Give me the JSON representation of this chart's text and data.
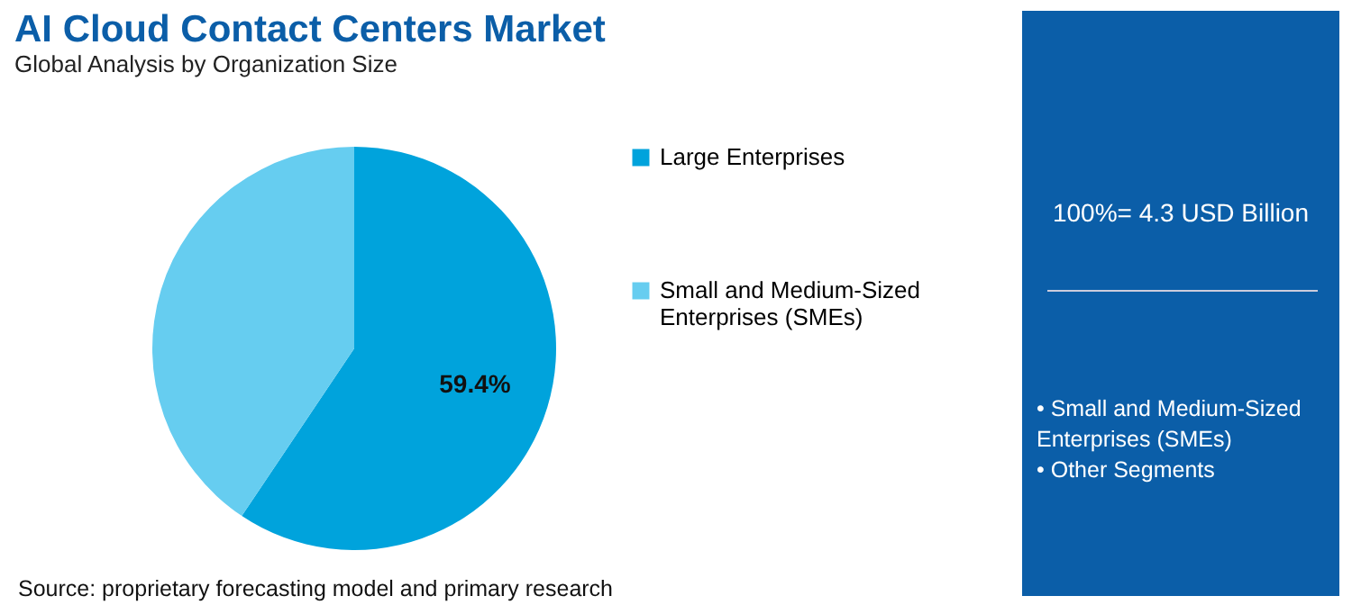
{
  "chart_data": {
    "type": "pie",
    "title": "AI Cloud Contact Centers Market",
    "subtitle": "Global Analysis by Organization Size",
    "categories": [
      "Large Enterprises",
      "Small and Medium-Sized Enterprises (SMEs)"
    ],
    "values": [
      59.4,
      40.6
    ],
    "colors": [
      "#00a3dc",
      "#66cdf0"
    ],
    "value_labels": [
      "59.4%",
      null
    ],
    "legend": "right",
    "annotations": [
      "100%= 4.3 USD Billion",
      "• Small and Medium-Sized Enterprises (SMEs)",
      "• Other Segments",
      "Source: proprietary forecasting model and primary research"
    ]
  }
}
